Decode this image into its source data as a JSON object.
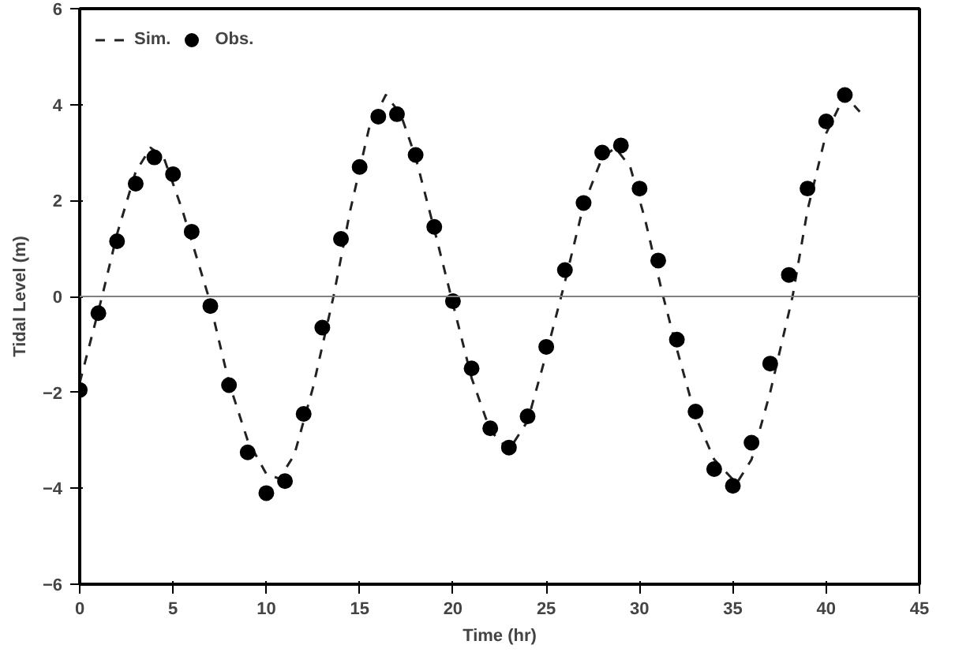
{
  "chart_data": {
    "type": "line",
    "xlabel": "Time (hr)",
    "ylabel": "Tidal Level (m)",
    "xlim": [
      0,
      45
    ],
    "ylim": [
      -6,
      6
    ],
    "xticks": [
      0,
      5,
      10,
      15,
      20,
      25,
      30,
      35,
      40,
      45
    ],
    "yticks": [
      -6,
      -4,
      -2,
      0,
      2,
      4,
      6
    ],
    "grid": false,
    "legend": "top left",
    "ref_lines": [
      {
        "axis": "y",
        "value": 0,
        "color": "#808080"
      }
    ],
    "series": [
      {
        "name": "Sim.",
        "line_style": "dashed",
        "marker": "none",
        "color": "#222222",
        "x": [
          0,
          0.6,
          1.2,
          2,
          3,
          3.8,
          4.5,
          5.5,
          6.9,
          8,
          9,
          10,
          10.7,
          11.5,
          12.5,
          13.6,
          14.5,
          15.5,
          16.4,
          17.2,
          18,
          19,
          19.9,
          21,
          22,
          23,
          24,
          25,
          26,
          27,
          28,
          28.7,
          29.5,
          30.3,
          31.2,
          32,
          33,
          34,
          35.2,
          36,
          37,
          38.2,
          39,
          40,
          41,
          41.8
        ],
        "values": [
          -1.8,
          -0.9,
          0,
          1.3,
          2.6,
          3.1,
          2.9,
          1.8,
          0,
          -1.8,
          -3.0,
          -3.7,
          -3.8,
          -3.3,
          -1.9,
          0,
          1.8,
          3.5,
          4.2,
          3.8,
          2.9,
          1.4,
          0,
          -1.7,
          -2.8,
          -3.2,
          -2.6,
          -1.2,
          0.3,
          1.9,
          2.9,
          3.1,
          2.7,
          1.6,
          0.1,
          -1.1,
          -2.5,
          -3.4,
          -3.9,
          -3.4,
          -2.0,
          0,
          1.8,
          3.4,
          4.2,
          3.85
        ]
      },
      {
        "name": "Obs.",
        "type": "scatter",
        "marker": "circle",
        "color": "#000000",
        "x": [
          0,
          1,
          2,
          3,
          4,
          5,
          6,
          7,
          8,
          9,
          10,
          11,
          12,
          13,
          14,
          15,
          16,
          17,
          18,
          19,
          20,
          21,
          22,
          23,
          24,
          25,
          26,
          27,
          28,
          29,
          30,
          31,
          32,
          33,
          34,
          35,
          36,
          37,
          38,
          39,
          40,
          41
        ],
        "values": [
          -1.95,
          -0.35,
          1.15,
          2.35,
          2.9,
          2.55,
          1.35,
          -0.2,
          -1.85,
          -3.25,
          -4.1,
          -3.85,
          -2.45,
          -0.65,
          1.2,
          2.7,
          3.75,
          3.8,
          2.95,
          1.45,
          -0.1,
          -1.5,
          -2.75,
          -3.15,
          -2.5,
          -1.05,
          0.55,
          1.95,
          3.0,
          3.15,
          2.25,
          0.75,
          -0.9,
          -2.4,
          -3.6,
          -3.95,
          -3.05,
          -1.4,
          0.45,
          2.25,
          3.65,
          4.2
        ]
      }
    ]
  }
}
